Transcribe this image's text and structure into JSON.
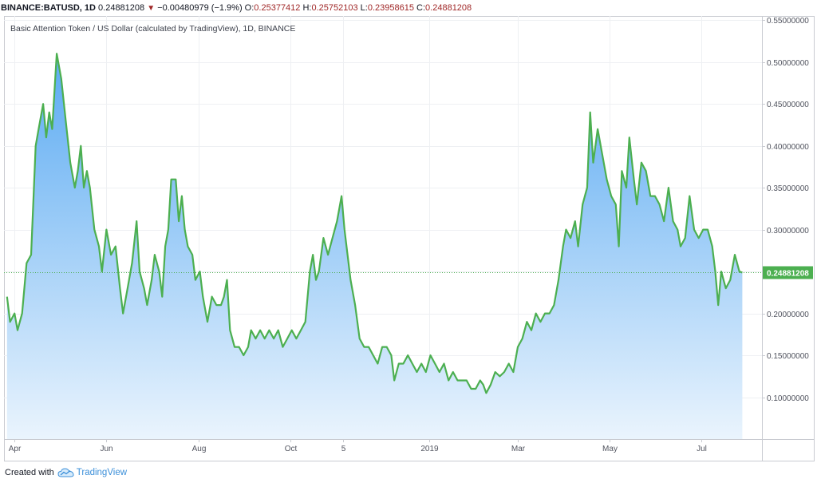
{
  "header": {
    "symbol": "BINANCE:BATUSD, 1D",
    "last": "0.24881208",
    "change": "−0.00480979 (−1.9%)",
    "o_label": "O:",
    "o_value": "0.25377412",
    "h_label": "H:",
    "h_value": "0.25752103",
    "l_label": "L:",
    "l_value": "0.23958615",
    "c_label": "C:",
    "c_value": "0.24881208"
  },
  "footer": {
    "created_with": "Created with",
    "brand": "TradingView"
  },
  "colors": {
    "line": "#4caf50",
    "fill_top": "#5aaaf2",
    "fill_bottom": "#eaf4fd",
    "price_label_bg": "#4caf50",
    "down": "#a02828"
  },
  "chart_data": {
    "type": "area",
    "title": "Basic Attention Token / US Dollar (calculated by TradingView), 1D, BINANCE",
    "last_price_label": "0.24881208",
    "last_price": 0.24881208,
    "y_ticks": [
      "0.55000000",
      "0.50000000",
      "0.45000000",
      "0.40000000",
      "0.35000000",
      "0.30000000",
      "0.25000000",
      "0.20000000",
      "0.15000000",
      "0.10000000"
    ],
    "ylim": [
      0.05,
      0.555
    ],
    "x_ticks": [
      {
        "label": "Apr",
        "date": "2018-04-01"
      },
      {
        "label": "Jun",
        "date": "2018-06-01"
      },
      {
        "label": "Aug",
        "date": "2018-08-01"
      },
      {
        "label": "Oct",
        "date": "2018-10-01"
      },
      {
        "label": "5",
        "date": "2018-11-05"
      },
      {
        "label": "2019",
        "date": "2019-01-01"
      },
      {
        "label": "Mar",
        "date": "2019-03-01"
      },
      {
        "label": "May",
        "date": "2019-05-01"
      },
      {
        "label": "Jul",
        "date": "2019-07-01"
      }
    ],
    "xlim": [
      "2018-03-25",
      "2019-08-10"
    ],
    "grid": true,
    "series": [
      {
        "values": [
          [
            "2018-03-27",
            0.22
          ],
          [
            "2018-03-29",
            0.19
          ],
          [
            "2018-04-01",
            0.2
          ],
          [
            "2018-04-03",
            0.18
          ],
          [
            "2018-04-06",
            0.2
          ],
          [
            "2018-04-09",
            0.26
          ],
          [
            "2018-04-12",
            0.27
          ],
          [
            "2018-04-15",
            0.4
          ],
          [
            "2018-04-17",
            0.42
          ],
          [
            "2018-04-20",
            0.45
          ],
          [
            "2018-04-22",
            0.41
          ],
          [
            "2018-04-24",
            0.44
          ],
          [
            "2018-04-26",
            0.42
          ],
          [
            "2018-04-29",
            0.51
          ],
          [
            "2018-05-02",
            0.48
          ],
          [
            "2018-05-05",
            0.43
          ],
          [
            "2018-05-08",
            0.38
          ],
          [
            "2018-05-11",
            0.35
          ],
          [
            "2018-05-13",
            0.37
          ],
          [
            "2018-05-15",
            0.4
          ],
          [
            "2018-05-17",
            0.35
          ],
          [
            "2018-05-19",
            0.37
          ],
          [
            "2018-05-21",
            0.35
          ],
          [
            "2018-05-24",
            0.3
          ],
          [
            "2018-05-27",
            0.28
          ],
          [
            "2018-05-29",
            0.25
          ],
          [
            "2018-06-01",
            0.3
          ],
          [
            "2018-06-04",
            0.27
          ],
          [
            "2018-06-07",
            0.28
          ],
          [
            "2018-06-10",
            0.23
          ],
          [
            "2018-06-12",
            0.2
          ],
          [
            "2018-06-15",
            0.23
          ],
          [
            "2018-06-18",
            0.26
          ],
          [
            "2018-06-21",
            0.31
          ],
          [
            "2018-06-23",
            0.25
          ],
          [
            "2018-06-26",
            0.23
          ],
          [
            "2018-06-28",
            0.21
          ],
          [
            "2018-07-01",
            0.24
          ],
          [
            "2018-07-03",
            0.27
          ],
          [
            "2018-07-06",
            0.25
          ],
          [
            "2018-07-08",
            0.22
          ],
          [
            "2018-07-10",
            0.28
          ],
          [
            "2018-07-12",
            0.3
          ],
          [
            "2018-07-14",
            0.36
          ],
          [
            "2018-07-17",
            0.36
          ],
          [
            "2018-07-19",
            0.31
          ],
          [
            "2018-07-21",
            0.34
          ],
          [
            "2018-07-23",
            0.3
          ],
          [
            "2018-07-25",
            0.28
          ],
          [
            "2018-07-28",
            0.27
          ],
          [
            "2018-07-30",
            0.24
          ],
          [
            "2018-08-02",
            0.25
          ],
          [
            "2018-08-04",
            0.22
          ],
          [
            "2018-08-07",
            0.19
          ],
          [
            "2018-08-10",
            0.22
          ],
          [
            "2018-08-13",
            0.21
          ],
          [
            "2018-08-16",
            0.21
          ],
          [
            "2018-08-18",
            0.22
          ],
          [
            "2018-08-20",
            0.24
          ],
          [
            "2018-08-22",
            0.18
          ],
          [
            "2018-08-25",
            0.16
          ],
          [
            "2018-08-28",
            0.16
          ],
          [
            "2018-08-31",
            0.15
          ],
          [
            "2018-09-03",
            0.16
          ],
          [
            "2018-09-05",
            0.18
          ],
          [
            "2018-09-08",
            0.17
          ],
          [
            "2018-09-11",
            0.18
          ],
          [
            "2018-09-14",
            0.17
          ],
          [
            "2018-09-17",
            0.18
          ],
          [
            "2018-09-20",
            0.17
          ],
          [
            "2018-09-23",
            0.18
          ],
          [
            "2018-09-26",
            0.16
          ],
          [
            "2018-09-29",
            0.17
          ],
          [
            "2018-10-02",
            0.18
          ],
          [
            "2018-10-05",
            0.17
          ],
          [
            "2018-10-08",
            0.18
          ],
          [
            "2018-10-11",
            0.19
          ],
          [
            "2018-10-14",
            0.25
          ],
          [
            "2018-10-16",
            0.27
          ],
          [
            "2018-10-18",
            0.24
          ],
          [
            "2018-10-20",
            0.25
          ],
          [
            "2018-10-23",
            0.29
          ],
          [
            "2018-10-26",
            0.27
          ],
          [
            "2018-10-29",
            0.29
          ],
          [
            "2018-11-01",
            0.31
          ],
          [
            "2018-11-04",
            0.34
          ],
          [
            "2018-11-06",
            0.3
          ],
          [
            "2018-11-08",
            0.27
          ],
          [
            "2018-11-10",
            0.24
          ],
          [
            "2018-11-13",
            0.21
          ],
          [
            "2018-11-16",
            0.17
          ],
          [
            "2018-11-19",
            0.16
          ],
          [
            "2018-11-22",
            0.16
          ],
          [
            "2018-11-25",
            0.15
          ],
          [
            "2018-11-28",
            0.14
          ],
          [
            "2018-12-01",
            0.16
          ],
          [
            "2018-12-04",
            0.16
          ],
          [
            "2018-12-07",
            0.15
          ],
          [
            "2018-12-09",
            0.12
          ],
          [
            "2018-12-12",
            0.14
          ],
          [
            "2018-12-15",
            0.14
          ],
          [
            "2018-12-18",
            0.15
          ],
          [
            "2018-12-21",
            0.14
          ],
          [
            "2018-12-24",
            0.13
          ],
          [
            "2018-12-27",
            0.14
          ],
          [
            "2018-12-30",
            0.13
          ],
          [
            "2019-01-02",
            0.15
          ],
          [
            "2019-01-05",
            0.14
          ],
          [
            "2019-01-08",
            0.13
          ],
          [
            "2019-01-11",
            0.14
          ],
          [
            "2019-01-14",
            0.12
          ],
          [
            "2019-01-17",
            0.13
          ],
          [
            "2019-01-20",
            0.12
          ],
          [
            "2019-01-23",
            0.12
          ],
          [
            "2019-01-26",
            0.12
          ],
          [
            "2019-01-29",
            0.11
          ],
          [
            "2019-02-01",
            0.11
          ],
          [
            "2019-02-04",
            0.12
          ],
          [
            "2019-02-06",
            0.115
          ],
          [
            "2019-02-08",
            0.105
          ],
          [
            "2019-02-11",
            0.115
          ],
          [
            "2019-02-14",
            0.13
          ],
          [
            "2019-02-17",
            0.125
          ],
          [
            "2019-02-20",
            0.13
          ],
          [
            "2019-02-23",
            0.14
          ],
          [
            "2019-02-26",
            0.13
          ],
          [
            "2019-03-01",
            0.16
          ],
          [
            "2019-03-04",
            0.17
          ],
          [
            "2019-03-07",
            0.19
          ],
          [
            "2019-03-10",
            0.18
          ],
          [
            "2019-03-13",
            0.2
          ],
          [
            "2019-03-16",
            0.19
          ],
          [
            "2019-03-19",
            0.2
          ],
          [
            "2019-03-22",
            0.2
          ],
          [
            "2019-03-25",
            0.21
          ],
          [
            "2019-03-28",
            0.24
          ],
          [
            "2019-03-31",
            0.28
          ],
          [
            "2019-04-02",
            0.3
          ],
          [
            "2019-04-05",
            0.29
          ],
          [
            "2019-04-08",
            0.31
          ],
          [
            "2019-04-10",
            0.28
          ],
          [
            "2019-04-13",
            0.33
          ],
          [
            "2019-04-16",
            0.35
          ],
          [
            "2019-04-18",
            0.44
          ],
          [
            "2019-04-20",
            0.38
          ],
          [
            "2019-04-23",
            0.42
          ],
          [
            "2019-04-26",
            0.39
          ],
          [
            "2019-04-29",
            0.36
          ],
          [
            "2019-05-02",
            0.34
          ],
          [
            "2019-05-05",
            0.33
          ],
          [
            "2019-05-07",
            0.28
          ],
          [
            "2019-05-09",
            0.37
          ],
          [
            "2019-05-12",
            0.35
          ],
          [
            "2019-05-14",
            0.41
          ],
          [
            "2019-05-17",
            0.36
          ],
          [
            "2019-05-19",
            0.33
          ],
          [
            "2019-05-22",
            0.38
          ],
          [
            "2019-05-25",
            0.37
          ],
          [
            "2019-05-28",
            0.34
          ],
          [
            "2019-05-31",
            0.34
          ],
          [
            "2019-06-03",
            0.33
          ],
          [
            "2019-06-06",
            0.31
          ],
          [
            "2019-06-09",
            0.35
          ],
          [
            "2019-06-12",
            0.31
          ],
          [
            "2019-06-15",
            0.3
          ],
          [
            "2019-06-17",
            0.28
          ],
          [
            "2019-06-20",
            0.29
          ],
          [
            "2019-06-23",
            0.34
          ],
          [
            "2019-06-26",
            0.3
          ],
          [
            "2019-06-29",
            0.29
          ],
          [
            "2019-07-02",
            0.3
          ],
          [
            "2019-07-05",
            0.3
          ],
          [
            "2019-07-08",
            0.28
          ],
          [
            "2019-07-10",
            0.25
          ],
          [
            "2019-07-12",
            0.21
          ],
          [
            "2019-07-14",
            0.25
          ],
          [
            "2019-07-17",
            0.23
          ],
          [
            "2019-07-20",
            0.24
          ],
          [
            "2019-07-23",
            0.27
          ],
          [
            "2019-07-26",
            0.25
          ],
          [
            "2019-07-28",
            0.2488
          ]
        ]
      }
    ]
  }
}
